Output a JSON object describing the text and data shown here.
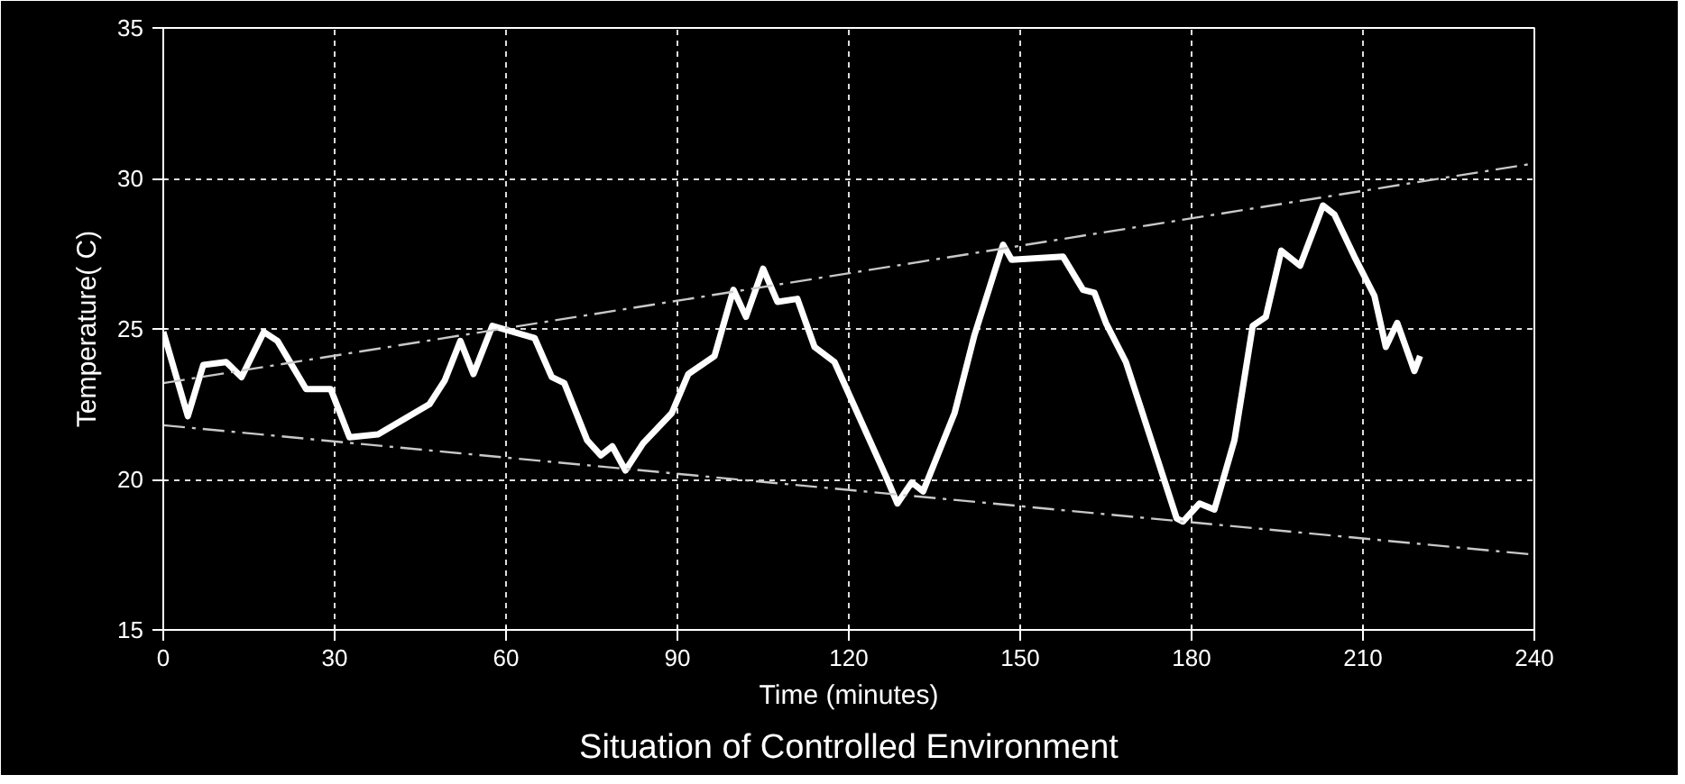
{
  "chart_data": {
    "type": "line",
    "title": "Situation of Controlled Environment",
    "xlabel": "Time (minutes)",
    "ylabel": "Temperature( C)",
    "xlim": [
      0,
      240
    ],
    "ylim": [
      15,
      35
    ],
    "xticks": [
      0,
      30,
      60,
      90,
      120,
      150,
      180,
      210,
      240
    ],
    "yticks": [
      15,
      20,
      25,
      30,
      35
    ],
    "grid": true,
    "marker": "none",
    "series": [
      {
        "color": "#ffffff",
        "line_style": "solid",
        "x": [
          0,
          4.3,
          7,
          11,
          13.7,
          17.6,
          20,
          25,
          29.3,
          32.6,
          37.6,
          46.6,
          49.3,
          52,
          54.3,
          57.6,
          65,
          68,
          70.2,
          74.2,
          76.6,
          78.6,
          80.9,
          84,
          89,
          91.9,
          96.5,
          99.8,
          102,
          105,
          107.5,
          111,
          114,
          117.5,
          122,
          126.5,
          128.5,
          131,
          133,
          138.5,
          142,
          147,
          148.5,
          157.5,
          161,
          163,
          165,
          168.5,
          177.4,
          178.5,
          181.4,
          184,
          187.5,
          190.7,
          193,
          195.7,
          199,
          203,
          205,
          208.5,
          212,
          214,
          216,
          219,
          220
        ],
        "values": [
          24.9,
          22.1,
          23.8,
          23.9,
          23.4,
          24.9,
          24.6,
          23.0,
          23.0,
          21.4,
          21.5,
          22.5,
          23.3,
          24.6,
          23.5,
          25.1,
          24.7,
          23.4,
          23.2,
          21.3,
          20.8,
          21.1,
          20.3,
          21.2,
          22.2,
          23.5,
          24.1,
          26.3,
          25.4,
          27.0,
          25.9,
          26.0,
          24.4,
          23.9,
          22.0,
          20.1,
          19.2,
          19.9,
          19.6,
          22.2,
          24.8,
          27.8,
          27.3,
          27.4,
          26.3,
          26.2,
          25.2,
          23.9,
          18.7,
          18.6,
          19.2,
          19.0,
          21.3,
          25.1,
          25.4,
          27.6,
          27.1,
          29.1,
          28.8,
          27.4,
          26.1,
          24.4,
          25.2,
          23.6,
          24.1
        ]
      },
      {
        "type": "line",
        "color": "#c8c8c8",
        "line_style": "dashed",
        "x": [
          0,
          240
        ],
        "values": [
          23.2,
          30.5
        ]
      },
      {
        "type": "line",
        "color": "#c8c8c8",
        "line_style": "dashed",
        "x": [
          0,
          240
        ],
        "values": [
          21.8,
          17.5
        ]
      }
    ]
  }
}
